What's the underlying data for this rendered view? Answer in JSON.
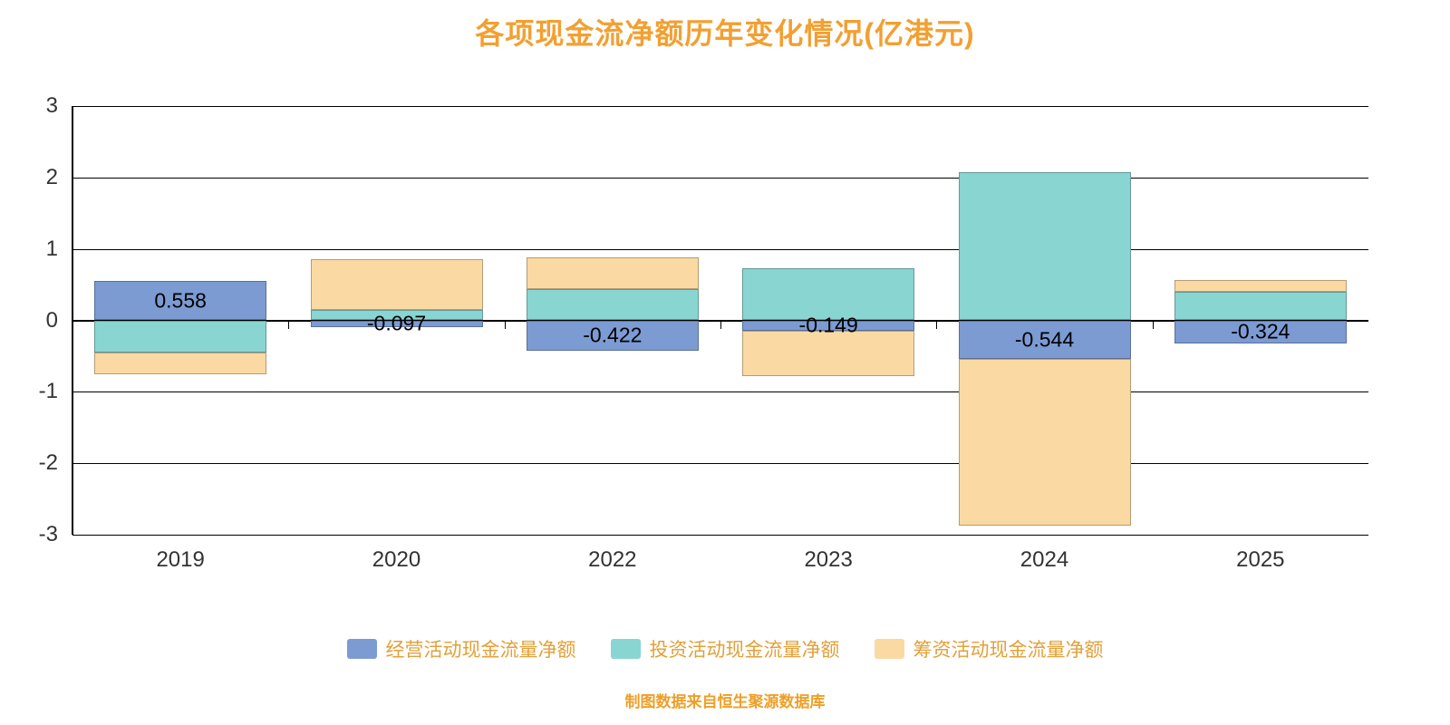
{
  "title": "各项现金流净额历年变化情况(亿港元)",
  "source_note": "制图数据来自恒生聚源数据库",
  "colors": {
    "title": "#F2A032",
    "legend_text": "#E2A039",
    "source_note": "#EE9F27",
    "axis": "#000000",
    "tick_label": "#333333",
    "operating": "#7C9BD3",
    "investing": "#89D5D2",
    "financing": "#FBD9A3"
  },
  "chart_data": {
    "type": "bar",
    "stacked": true,
    "title": "各项现金流净额历年变化情况(亿港元)",
    "categories": [
      "2019",
      "2020",
      "2022",
      "2023",
      "2024",
      "2025"
    ],
    "series": [
      {
        "name": "经营活动现金流量净额",
        "key": "operating",
        "color": "#7C9BD3",
        "values": [
          0.558,
          -0.097,
          -0.422,
          -0.149,
          -0.544,
          -0.324
        ]
      },
      {
        "name": "投资活动现金流量净额",
        "key": "investing",
        "color": "#89D5D2",
        "values": [
          -0.45,
          0.15,
          0.44,
          0.73,
          2.07,
          0.4
        ]
      },
      {
        "name": "筹资活动现金流量净额",
        "key": "financing",
        "color": "#FBD9A3",
        "values": [
          -0.3,
          0.7,
          0.44,
          -0.63,
          -2.33,
          0.17
        ]
      }
    ],
    "data_labels": {
      "series": "经营活动现金流量净额",
      "values": [
        "0.558",
        "-0.097",
        "-0.422",
        "-0.149",
        "-0.544",
        "-0.324"
      ]
    },
    "ylim": [
      -3,
      3
    ],
    "yticks": [
      3,
      2,
      1,
      0,
      -1,
      -2,
      -3
    ],
    "grid": true,
    "legend_position": "bottom"
  }
}
